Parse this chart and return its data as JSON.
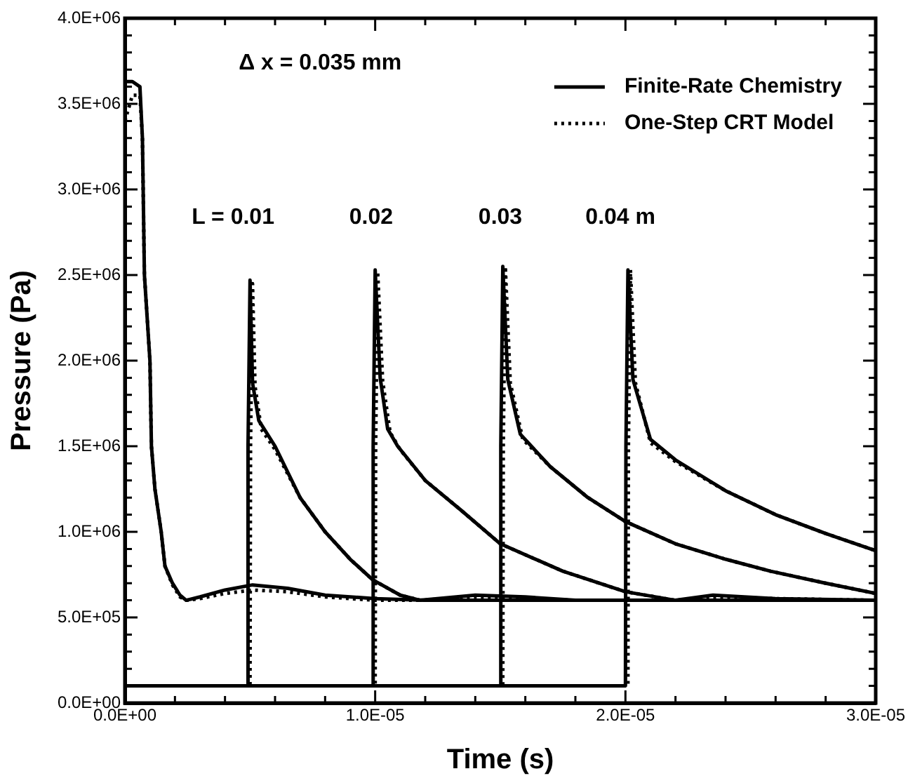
{
  "chart_data": {
    "type": "line",
    "xlabel": "Time (s)",
    "ylabel": "Pressure (Pa)",
    "marker": "none",
    "grid": false,
    "legend": "top right",
    "annotations": [
      "Δ x = 0.035 mm",
      "L = 0.01",
      "0.02",
      "0.03",
      "0.04 m"
    ],
    "xlim": [
      0,
      3e-05
    ],
    "ylim": [
      0,
      4000000
    ],
    "xticks": [
      {
        "value": 0,
        "label": "0.0E+00"
      },
      {
        "value": 2e-06,
        "label": null
      },
      {
        "value": 4e-06,
        "label": null
      },
      {
        "value": 6e-06,
        "label": null
      },
      {
        "value": 8e-06,
        "label": null
      },
      {
        "value": 1e-05,
        "label": "1.0E-05"
      },
      {
        "value": 1.2e-05,
        "label": null
      },
      {
        "value": 1.4e-05,
        "label": null
      },
      {
        "value": 1.6e-05,
        "label": null
      },
      {
        "value": 1.8e-05,
        "label": null
      },
      {
        "value": 2e-05,
        "label": "2.0E-05"
      },
      {
        "value": 2.2e-05,
        "label": null
      },
      {
        "value": 2.4e-05,
        "label": null
      },
      {
        "value": 2.6e-05,
        "label": null
      },
      {
        "value": 2.8e-05,
        "label": null
      },
      {
        "value": 3e-05,
        "label": "3.0E-05"
      }
    ],
    "yticks": [
      {
        "value": 0,
        "label": "0.0E+00"
      },
      {
        "value": 100000,
        "label": null
      },
      {
        "value": 200000,
        "label": null
      },
      {
        "value": 300000,
        "label": null
      },
      {
        "value": 400000,
        "label": null
      },
      {
        "value": 500000,
        "label": "5.0E+05"
      },
      {
        "value": 600000,
        "label": null
      },
      {
        "value": 700000,
        "label": null
      },
      {
        "value": 800000,
        "label": null
      },
      {
        "value": 900000,
        "label": null
      },
      {
        "value": 1000000,
        "label": "1.0E+06"
      },
      {
        "value": 1100000,
        "label": null
      },
      {
        "value": 1200000,
        "label": null
      },
      {
        "value": 1300000,
        "label": null
      },
      {
        "value": 1400000,
        "label": null
      },
      {
        "value": 1500000,
        "label": "1.5E+06"
      },
      {
        "value": 1600000,
        "label": null
      },
      {
        "value": 1700000,
        "label": null
      },
      {
        "value": 1800000,
        "label": null
      },
      {
        "value": 1900000,
        "label": null
      },
      {
        "value": 2000000,
        "label": "2.0E+06"
      },
      {
        "value": 2100000,
        "label": null
      },
      {
        "value": 2200000,
        "label": null
      },
      {
        "value": 2300000,
        "label": null
      },
      {
        "value": 2400000,
        "label": null
      },
      {
        "value": 2500000,
        "label": "2.5E+06"
      },
      {
        "value": 2600000,
        "label": null
      },
      {
        "value": 2700000,
        "label": null
      },
      {
        "value": 2800000,
        "label": null
      },
      {
        "value": 2900000,
        "label": null
      },
      {
        "value": 3000000,
        "label": "3.0E+06"
      },
      {
        "value": 3100000,
        "label": null
      },
      {
        "value": 3200000,
        "label": null
      },
      {
        "value": 3300000,
        "label": null
      },
      {
        "value": 3400000,
        "label": null
      },
      {
        "value": 3500000,
        "label": "3.5E+06"
      },
      {
        "value": 3600000,
        "label": null
      },
      {
        "value": 3700000,
        "label": null
      },
      {
        "value": 3800000,
        "label": null
      },
      {
        "value": 3900000,
        "label": null
      },
      {
        "value": 4000000,
        "label": "4.0E+06"
      }
    ],
    "series": [
      {
        "name": "Finite-Rate Chemistry",
        "color": "#000000",
        "line_style": "solid",
        "x": [
          0,
          3e-07,
          6e-07,
          7e-07,
          7.8e-07,
          1e-06,
          1.06e-06,
          1.2e-06,
          1.45e-06,
          1.6e-06,
          1.9e-06,
          2.2e-06,
          2.45e-06,
          3e-06,
          4e-06,
          5.1e-06,
          6.5e-06,
          8e-06,
          1e-05,
          1.2e-05,
          3e-05
        ],
        "values": [
          3630000,
          3630000,
          3600000,
          3300000,
          2500000,
          2000000,
          1500000,
          1250000,
          1000000,
          800000,
          700000,
          630000,
          600000,
          620000,
          660000,
          690000,
          670000,
          630000,
          610000,
          600000,
          600000
        ]
      },
      {
        "color": "#000000",
        "line_style": "solid",
        "x": [
          0,
          4.9e-06,
          4.92e-06,
          5e-06,
          5.1e-06,
          5.35e-06,
          6e-06,
          7e-06,
          8e-06,
          9e-06,
          9.9e-06,
          1.1e-05,
          1.18e-05,
          1.4e-05,
          1.6e-05,
          1.8e-05,
          3e-05
        ],
        "values": [
          100000,
          100000,
          1500000,
          2470000,
          1870000,
          1650000,
          1500000,
          1200000,
          1000000,
          840000,
          720000,
          630000,
          600000,
          630000,
          620000,
          600000,
          600000
        ]
      },
      {
        "color": "#000000",
        "line_style": "solid",
        "x": [
          0,
          9.9e-06,
          9.92e-06,
          1e-05,
          1.02e-05,
          1.05e-05,
          1.09e-05,
          1.2e-05,
          1.34e-05,
          1.5e-05,
          1.75e-05,
          2e-05,
          2.2e-05,
          2.35e-05,
          2.6e-05,
          3e-05
        ],
        "values": [
          100000,
          100000,
          1500000,
          2530000,
          1900000,
          1600000,
          1500000,
          1300000,
          1130000,
          930000,
          770000,
          650000,
          600000,
          630000,
          610000,
          600000
        ]
      },
      {
        "color": "#000000",
        "line_style": "solid",
        "x": [
          0,
          1.5e-05,
          1.502e-05,
          1.51e-05,
          1.53e-05,
          1.58e-05,
          1.7e-05,
          1.85e-05,
          2e-05,
          2.2e-05,
          2.4e-05,
          2.58e-05,
          2.8e-05,
          3e-05
        ],
        "values": [
          100000,
          100000,
          1500000,
          2550000,
          1890000,
          1570000,
          1380000,
          1200000,
          1060000,
          930000,
          840000,
          770000,
          700000,
          640000
        ]
      },
      {
        "color": "#000000",
        "line_style": "solid",
        "x": [
          0,
          2e-05,
          2.002e-05,
          2.01e-05,
          2.03e-05,
          2.1e-05,
          2.2e-05,
          2.4e-05,
          2.6e-05,
          2.8e-05,
          3e-05
        ],
        "values": [
          100000,
          100000,
          1500000,
          2530000,
          1890000,
          1540000,
          1420000,
          1240000,
          1100000,
          990000,
          890000
        ]
      },
      {
        "name": "One-Step CRT Model",
        "color": "#000000",
        "line_style": "dotted",
        "x": [
          0,
          3e-07,
          6e-07,
          7e-07,
          7.8e-07,
          1e-06,
          1.06e-06,
          1.2e-06,
          1.45e-06,
          1.6e-06,
          1.9e-06,
          2.2e-06,
          2.45e-06,
          3e-06,
          4e-06,
          5.1e-06,
          6.5e-06,
          8e-06,
          1e-05,
          1.2e-05,
          3e-05
        ],
        "values": [
          3400000,
          3550000,
          3550000,
          3300000,
          2500000,
          2000000,
          1500000,
          1250000,
          1000000,
          800000,
          690000,
          620000,
          600000,
          610000,
          640000,
          660000,
          650000,
          620000,
          600000,
          600000,
          600000
        ]
      },
      {
        "color": "#000000",
        "line_style": "dotted",
        "x": [
          0,
          5e-06,
          5.02e-06,
          5.1e-06,
          5.2e-06,
          5.45e-06,
          6e-06,
          7e-06,
          8e-06,
          9e-06,
          9.9e-06,
          1.1e-05,
          1.18e-05,
          1.4e-05,
          1.6e-05,
          1.8e-05,
          3e-05
        ],
        "values": [
          100000,
          100000,
          1500000,
          2450000,
          1850000,
          1600000,
          1480000,
          1200000,
          1000000,
          840000,
          720000,
          630000,
          600000,
          620000,
          610000,
          600000,
          600000
        ]
      },
      {
        "color": "#000000",
        "line_style": "dotted",
        "x": [
          0,
          1e-05,
          1.002e-05,
          1.01e-05,
          1.03e-05,
          1.06e-05,
          1.1e-05,
          1.2e-05,
          1.34e-05,
          1.5e-05,
          1.75e-05,
          2e-05,
          2.2e-05,
          2.35e-05,
          2.6e-05,
          3e-05
        ],
        "values": [
          100000,
          100000,
          1500000,
          2520000,
          1880000,
          1580000,
          1480000,
          1300000,
          1130000,
          930000,
          770000,
          650000,
          600000,
          620000,
          610000,
          600000
        ]
      },
      {
        "color": "#000000",
        "line_style": "dotted",
        "x": [
          0,
          1.51e-05,
          1.512e-05,
          1.52e-05,
          1.54e-05,
          1.59e-05,
          1.7e-05,
          1.85e-05,
          2e-05,
          2.2e-05,
          2.4e-05,
          2.58e-05,
          2.8e-05,
          3e-05
        ],
        "values": [
          100000,
          100000,
          1500000,
          2550000,
          1870000,
          1540000,
          1380000,
          1200000,
          1060000,
          930000,
          840000,
          770000,
          700000,
          640000
        ]
      },
      {
        "color": "#000000",
        "line_style": "dotted",
        "x": [
          0,
          2.01e-05,
          2.012e-05,
          2.02e-05,
          2.04e-05,
          2.1e-05,
          2.2e-05,
          2.4e-05,
          2.6e-05,
          2.8e-05,
          3e-05
        ],
        "values": [
          100000,
          100000,
          1500000,
          2530000,
          1870000,
          1520000,
          1410000,
          1240000,
          1100000,
          990000,
          890000
        ]
      }
    ]
  }
}
